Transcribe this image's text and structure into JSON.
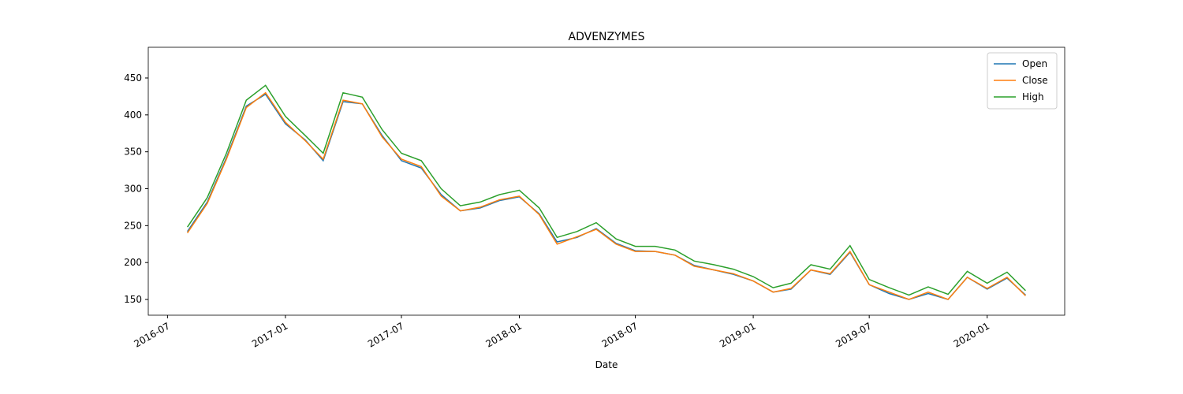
{
  "chart_data": {
    "type": "line",
    "title": "ADVENZYMES",
    "x_label": "Date",
    "x": [
      "2016-08",
      "2016-09",
      "2016-10",
      "2016-11",
      "2016-12",
      "2017-01",
      "2017-02",
      "2017-03",
      "2017-04",
      "2017-05",
      "2017-06",
      "2017-07",
      "2017-08",
      "2017-09",
      "2017-10",
      "2017-11",
      "2017-12",
      "2018-01",
      "2018-02",
      "2018-03",
      "2018-04",
      "2018-05",
      "2018-06",
      "2018-07",
      "2018-08",
      "2018-09",
      "2018-10",
      "2018-11",
      "2018-12",
      "2019-01",
      "2019-02",
      "2019-03",
      "2019-04",
      "2019-05",
      "2019-06",
      "2019-07",
      "2019-08",
      "2019-09",
      "2019-10",
      "2019-11",
      "2019-12",
      "2020-01",
      "2020-02",
      "2020-03"
    ],
    "series": [
      {
        "name": "Open",
        "color": "#1f77b4",
        "values": [
          242,
          282,
          342,
          412,
          428,
          388,
          366,
          338,
          418,
          415,
          372,
          338,
          328,
          292,
          270,
          274,
          284,
          289,
          266,
          228,
          234,
          246,
          226,
          216,
          215,
          210,
          196,
          190,
          184,
          175,
          160,
          164,
          190,
          184,
          214,
          170,
          158,
          150,
          158,
          150,
          180,
          164,
          179,
          156
        ]
      },
      {
        "name": "Close",
        "color": "#ff7f0e",
        "values": [
          240,
          280,
          340,
          410,
          430,
          390,
          365,
          340,
          420,
          415,
          370,
          340,
          330,
          290,
          270,
          275,
          285,
          290,
          265,
          225,
          235,
          245,
          225,
          215,
          215,
          210,
          195,
          190,
          185,
          175,
          160,
          165,
          190,
          185,
          215,
          170,
          160,
          150,
          160,
          150,
          180,
          165,
          180,
          155
        ]
      },
      {
        "name": "High",
        "color": "#2ca02c",
        "values": [
          248,
          288,
          348,
          420,
          440,
          398,
          372,
          348,
          430,
          424,
          380,
          348,
          338,
          300,
          277,
          282,
          292,
          298,
          274,
          234,
          242,
          254,
          232,
          222,
          222,
          217,
          202,
          197,
          191,
          181,
          166,
          172,
          197,
          191,
          223,
          177,
          166,
          156,
          167,
          157,
          188,
          172,
          187,
          162
        ]
      }
    ],
    "xlim": [
      "2016-06",
      "2020-05"
    ],
    "xticks": [
      "2016-07",
      "2017-01",
      "2017-07",
      "2018-01",
      "2018-07",
      "2019-01",
      "2019-07",
      "2020-01"
    ],
    "ylim": [
      128.7,
      491.6
    ],
    "yticks": [
      150,
      200,
      250,
      300,
      350,
      400,
      450
    ],
    "grid": false,
    "legend": "upper right"
  }
}
